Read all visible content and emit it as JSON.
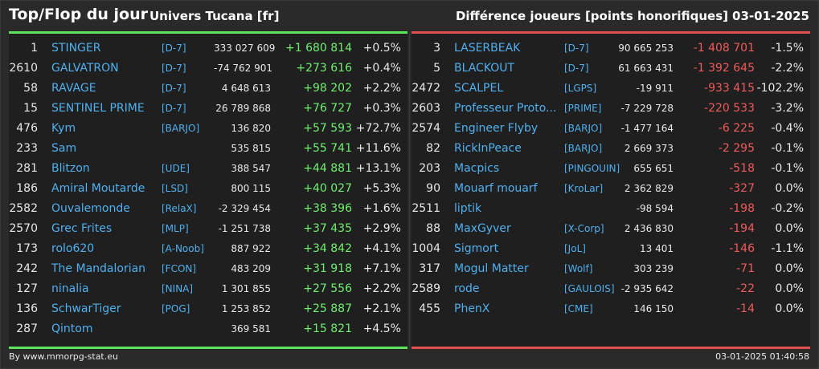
{
  "header": {
    "title": "Top/Flop du jour",
    "universe": "Univers Tucana [fr]",
    "subtitle": "Différence joueurs [points honorifiques]",
    "date": "03-01-2025"
  },
  "colors": {
    "top_accent": "#5ee35e",
    "flop_accent": "#e05050",
    "name_color": "#4fb0f0",
    "positive_diff": "#6ef06e",
    "negative_diff": "#f05a5a"
  },
  "top": [
    {
      "rank": "1",
      "name": "STINGER",
      "alliance": "[D-7]",
      "points": "333 027 609",
      "diff": "+1 680 814",
      "pct": "+0.5%"
    },
    {
      "rank": "2610",
      "name": "GALVATRON",
      "alliance": "[D-7]",
      "points": "-74 762 901",
      "diff": "+273 616",
      "pct": "+0.4%"
    },
    {
      "rank": "58",
      "name": "RAVAGE",
      "alliance": "[D-7]",
      "points": "4 648 613",
      "diff": "+98 202",
      "pct": "+2.2%"
    },
    {
      "rank": "15",
      "name": "SENTINEL PRIME",
      "alliance": "[D-7]",
      "points": "26 789 868",
      "diff": "+76 727",
      "pct": "+0.3%"
    },
    {
      "rank": "476",
      "name": "Kym",
      "alliance": "[BARJO]",
      "points": "136 820",
      "diff": "+57 593",
      "pct": "+72.7%"
    },
    {
      "rank": "233",
      "name": "Sam",
      "alliance": "",
      "points": "535 815",
      "diff": "+55 741",
      "pct": "+11.6%"
    },
    {
      "rank": "281",
      "name": "Blitzon",
      "alliance": "[UDE]",
      "points": "388 547",
      "diff": "+44 881",
      "pct": "+13.1%"
    },
    {
      "rank": "186",
      "name": "Amiral Moutarde",
      "alliance": "[LSD]",
      "points": "800 115",
      "diff": "+40 027",
      "pct": "+5.3%"
    },
    {
      "rank": "2582",
      "name": "Ouvalemonde",
      "alliance": "[RelaX]",
      "points": "-2 329 454",
      "diff": "+38 396",
      "pct": "+1.6%"
    },
    {
      "rank": "2570",
      "name": "Grec Frites",
      "alliance": "[MLP]",
      "points": "-1 251 738",
      "diff": "+37 435",
      "pct": "+2.9%"
    },
    {
      "rank": "173",
      "name": "rolo620",
      "alliance": "[A-Noob]",
      "points": "887 922",
      "diff": "+34 842",
      "pct": "+4.1%"
    },
    {
      "rank": "242",
      "name": "The Mandalorian",
      "alliance": "[FCON]",
      "points": "483 209",
      "diff": "+31 918",
      "pct": "+7.1%"
    },
    {
      "rank": "127",
      "name": "ninalia",
      "alliance": "[NINA]",
      "points": "1 301 855",
      "diff": "+27 556",
      "pct": "+2.2%"
    },
    {
      "rank": "136",
      "name": "SchwarTiger",
      "alliance": "[POG]",
      "points": "1 253 852",
      "diff": "+25 887",
      "pct": "+2.1%"
    },
    {
      "rank": "287",
      "name": "Qintom",
      "alliance": "",
      "points": "369 581",
      "diff": "+15 821",
      "pct": "+4.5%"
    }
  ],
  "flop": [
    {
      "rank": "3",
      "name": "LASERBEAK",
      "alliance": "[D-7]",
      "points": "90 665 253",
      "diff": "-1 408 701",
      "pct": "-1.5%"
    },
    {
      "rank": "5",
      "name": "BLACKOUT",
      "alliance": "[D-7]",
      "points": "61 663 431",
      "diff": "-1 392 645",
      "pct": "-2.2%"
    },
    {
      "rank": "2472",
      "name": "SCALPEL",
      "alliance": "[LGPS]",
      "points": "-19 911",
      "diff": "-933 415",
      "pct": "-102.2%"
    },
    {
      "rank": "2603",
      "name": "Professeur Proto...",
      "alliance": "[PRIME]",
      "points": "-7 229 728",
      "diff": "-220 533",
      "pct": "-3.2%"
    },
    {
      "rank": "2574",
      "name": "Engineer Flyby",
      "alliance": "[BARJO]",
      "points": "-1 477 164",
      "diff": "-6 225",
      "pct": "-0.4%"
    },
    {
      "rank": "82",
      "name": "RickInPeace",
      "alliance": "[BARJO]",
      "points": "2 669 373",
      "diff": "-2 295",
      "pct": "-0.1%"
    },
    {
      "rank": "203",
      "name": "Macpics",
      "alliance": "[PINGOUIN]",
      "points": "655 651",
      "diff": "-518",
      "pct": "-0.1%"
    },
    {
      "rank": "90",
      "name": "Mouarf mouarf",
      "alliance": "[KroLar]",
      "points": "2 362 829",
      "diff": "-327",
      "pct": "0.0%"
    },
    {
      "rank": "2511",
      "name": "liptik",
      "alliance": "",
      "points": "-98 594",
      "diff": "-198",
      "pct": "-0.2%"
    },
    {
      "rank": "88",
      "name": "MaxGyver",
      "alliance": "[X-Corp]",
      "points": "2 436 830",
      "diff": "-194",
      "pct": "0.0%"
    },
    {
      "rank": "1004",
      "name": "Sigmort",
      "alliance": "[JoL]",
      "points": "13 401",
      "diff": "-146",
      "pct": "-1.1%"
    },
    {
      "rank": "317",
      "name": "Mogul Matter",
      "alliance": "[Wolf]",
      "points": "303 239",
      "diff": "-71",
      "pct": "0.0%"
    },
    {
      "rank": "2589",
      "name": "rode",
      "alliance": "[GAULOIS]",
      "points": "-2 935 642",
      "diff": "-22",
      "pct": "0.0%"
    },
    {
      "rank": "455",
      "name": "PhenX",
      "alliance": "[CME]",
      "points": "146 150",
      "diff": "-14",
      "pct": "0.0%"
    }
  ],
  "footer": {
    "credit": "By www.mmorpg-stat.eu",
    "timestamp": "03-01-2025 01:40:58"
  }
}
